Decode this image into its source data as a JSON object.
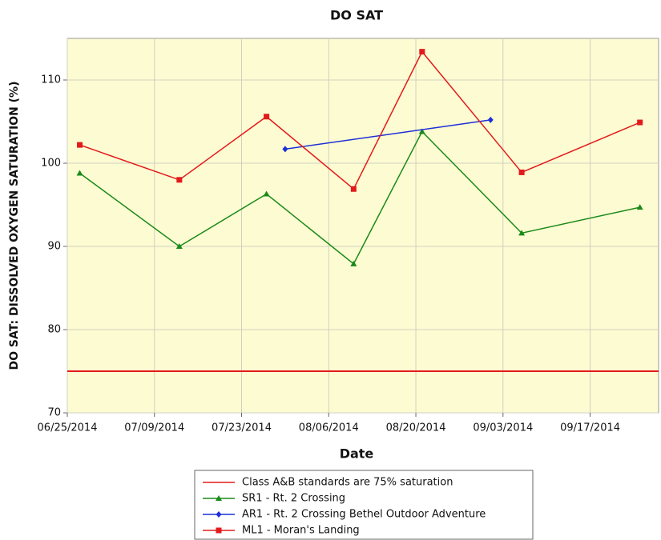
{
  "chart_data": {
    "type": "line",
    "title": "DO SAT",
    "xlabel": "Date",
    "ylabel": "DO SAT: DISSOLVED OXYGEN SATURATION (%)",
    "xlim": [
      "06/25/2014",
      "09/28/2014"
    ],
    "xticks": [
      "06/25/2014",
      "07/09/2014",
      "07/23/2014",
      "08/06/2014",
      "08/20/2014",
      "09/03/2014",
      "09/17/2014"
    ],
    "ylim": [
      70,
      115
    ],
    "yticks": [
      70,
      80,
      90,
      100,
      110
    ],
    "grid": true,
    "threshold": {
      "name": "Class A&B standards are 75% saturation",
      "value": 75,
      "color": "#e31a1c"
    },
    "series": [
      {
        "name": "SR1 - Rt. 2 Crossing",
        "color": "#1a8a1a",
        "marker": "triangle",
        "x": [
          "06/27/2014",
          "07/13/2014",
          "07/27/2014",
          "08/10/2014",
          "08/21/2014",
          "09/06/2014",
          "09/25/2014"
        ],
        "values": [
          98.8,
          90.0,
          96.3,
          87.9,
          103.8,
          91.6,
          94.7
        ]
      },
      {
        "name": "AR1 - Rt. 2 Crossing Bethel Outdoor Adventure",
        "color": "#1f2fd8",
        "marker": "diamond",
        "x": [
          "07/30/2014",
          "09/01/2014"
        ],
        "values": [
          101.7,
          105.2
        ]
      },
      {
        "name": "ML1 - Moran's Landing",
        "color": "#e31a1c",
        "marker": "square",
        "x": [
          "06/27/2014",
          "07/13/2014",
          "07/27/2014",
          "08/10/2014",
          "08/21/2014",
          "09/06/2014",
          "09/25/2014"
        ],
        "values": [
          102.2,
          98.0,
          105.6,
          96.9,
          113.4,
          98.9,
          104.9
        ]
      }
    ]
  }
}
